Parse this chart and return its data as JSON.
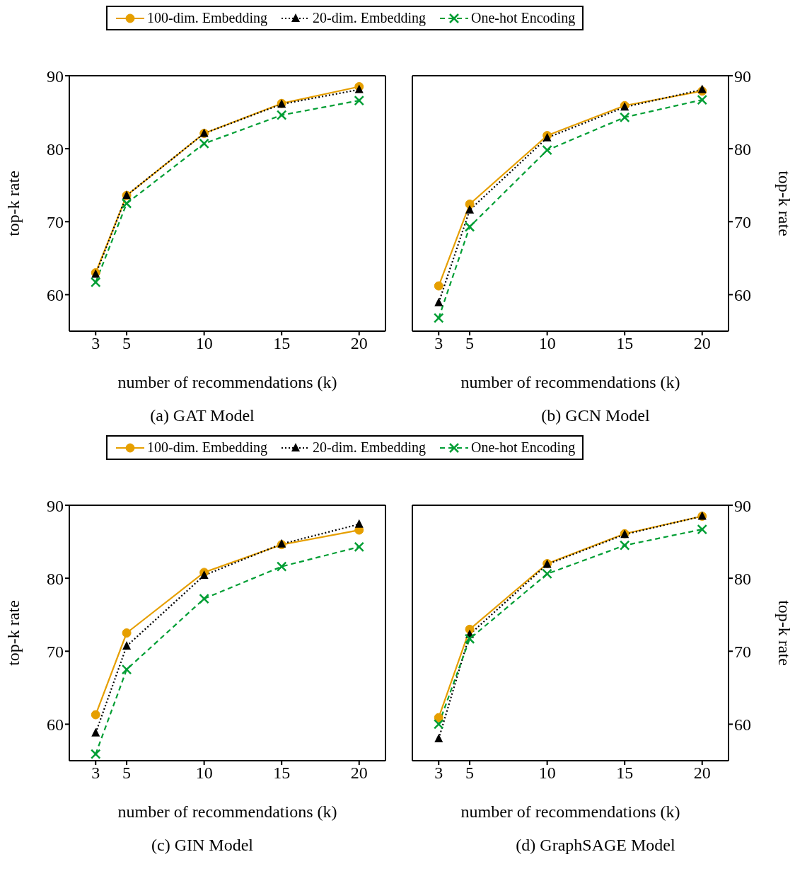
{
  "chart_data": [
    {
      "type": "line",
      "title": "(a) GAT Model",
      "xlabel": "number of recommendations (k)",
      "ylabel": "top-k rate",
      "x": [
        3,
        5,
        10,
        15,
        20
      ],
      "xlim": [
        1.3,
        21.7
      ],
      "xticks": [
        3,
        5,
        10,
        15,
        20
      ],
      "ylim": [
        55,
        90
      ],
      "yticks": [
        60,
        70,
        80,
        90
      ],
      "legend": "top",
      "grid": false,
      "series": [
        {
          "name": "100-dim. Embedding",
          "color": "#e69f00",
          "marker": "circle",
          "line_style": "solid",
          "values": [
            63.0,
            73.6,
            82.1,
            86.2,
            88.5
          ]
        },
        {
          "name": "20-dim. Embedding",
          "color": "#000000",
          "marker": "triangle",
          "line_style": "dotted",
          "values": [
            62.8,
            73.6,
            82.1,
            86.1,
            88.1
          ]
        },
        {
          "name": "One-hot Encoding",
          "color": "#009e34",
          "marker": "cross",
          "line_style": "dashed",
          "values": [
            61.7,
            72.5,
            80.7,
            84.6,
            86.6
          ]
        }
      ]
    },
    {
      "type": "line",
      "title": "(b) GCN Model",
      "xlabel": "number of recommendations (k)",
      "y2label": "top-k rate",
      "x": [
        3,
        5,
        10,
        15,
        20
      ],
      "xlim": [
        1.3,
        21.7
      ],
      "xticks": [
        3,
        5,
        10,
        15,
        20
      ],
      "y2lim": [
        55,
        90
      ],
      "y2ticks": [
        60,
        70,
        80,
        90
      ],
      "grid": false,
      "series": [
        {
          "color": "#e69f00",
          "marker": "circle",
          "line_style": "solid",
          "axis": "y2",
          "values": [
            61.2,
            72.4,
            81.8,
            85.9,
            87.9
          ]
        },
        {
          "color": "#000000",
          "marker": "triangle",
          "line_style": "dotted",
          "axis": "y2",
          "values": [
            58.9,
            71.6,
            81.5,
            85.7,
            88.1
          ]
        },
        {
          "color": "#009e34",
          "marker": "cross",
          "line_style": "dashed",
          "axis": "y2",
          "values": [
            56.8,
            69.3,
            79.8,
            84.3,
            86.7
          ]
        }
      ]
    },
    {
      "type": "line",
      "title": "(c) GIN Model",
      "xlabel": "number of recommendations (k)",
      "ylabel": "top-k rate",
      "x": [
        3,
        5,
        10,
        15,
        20
      ],
      "xlim": [
        1.3,
        21.7
      ],
      "xticks": [
        3,
        5,
        10,
        15,
        20
      ],
      "ylim": [
        55,
        90
      ],
      "yticks": [
        60,
        70,
        80,
        90
      ],
      "legend": "top",
      "grid": false,
      "series": [
        {
          "name": "100-dim. Embedding",
          "color": "#e69f00",
          "marker": "circle",
          "line_style": "solid",
          "values": [
            61.3,
            72.5,
            80.8,
            84.6,
            86.6
          ]
        },
        {
          "name": "20-dim. Embedding",
          "color": "#000000",
          "marker": "triangle",
          "line_style": "dotted",
          "values": [
            58.8,
            70.7,
            80.4,
            84.7,
            87.4
          ]
        },
        {
          "name": "One-hot Encoding",
          "color": "#009e34",
          "marker": "cross",
          "line_style": "dashed",
          "values": [
            55.9,
            67.5,
            77.2,
            81.6,
            84.3
          ]
        }
      ]
    },
    {
      "type": "line",
      "title": "(d) GraphSAGE Model",
      "xlabel": "number of recommendations (k)",
      "y2label": "top-k rate",
      "x": [
        3,
        5,
        10,
        15,
        20
      ],
      "xlim": [
        1.3,
        21.7
      ],
      "xticks": [
        3,
        5,
        10,
        15,
        20
      ],
      "y2lim": [
        55,
        90
      ],
      "y2ticks": [
        60,
        70,
        80,
        90
      ],
      "grid": false,
      "series": [
        {
          "color": "#e69f00",
          "marker": "circle",
          "line_style": "solid",
          "axis": "y2",
          "values": [
            60.9,
            73.0,
            82.0,
            86.1,
            88.5
          ]
        },
        {
          "color": "#000000",
          "marker": "triangle",
          "line_style": "dotted",
          "axis": "y2",
          "values": [
            58.0,
            72.3,
            81.9,
            86.0,
            88.5
          ]
        },
        {
          "color": "#009e34",
          "marker": "cross",
          "line_style": "dashed",
          "axis": "y2",
          "values": [
            60.0,
            71.7,
            80.6,
            84.5,
            86.7
          ]
        }
      ]
    }
  ]
}
